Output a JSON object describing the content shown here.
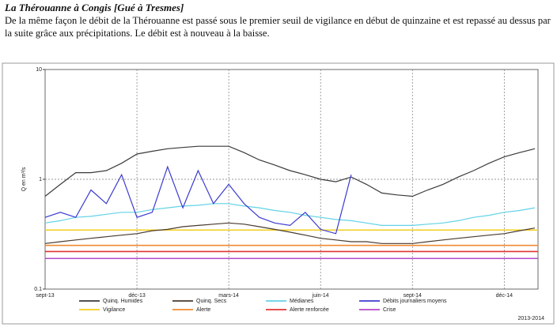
{
  "chart_data": {
    "type": "line",
    "title": "La Thérouanne à Congis [Gué à Tresmes]",
    "subtitle": "De la même façon le débit de la Thérouanne est passé sous le premier seuil de vigilance en début de quinzaine et est repassé au dessus par la suite grâce aux précipitations. Le débit est à nouveau à la baisse.",
    "ylabel": "Q en m³/s",
    "period": "2013-2014",
    "log_scale": true,
    "grid": true,
    "ylim": [
      0.1,
      10
    ],
    "yticks": [
      0.1,
      1,
      10
    ],
    "categories": [
      "sept-13",
      null,
      null,
      null,
      null,
      null,
      "déc-13",
      null,
      null,
      null,
      null,
      null,
      "mars-14",
      null,
      null,
      null,
      null,
      null,
      "juin-14",
      null,
      null,
      null,
      null,
      null,
      "sept-14",
      null,
      null,
      null,
      null,
      null,
      "déc-14",
      null,
      null
    ],
    "series": [
      {
        "name": "Quinq. Humides",
        "color": "#3a3a3a",
        "values": [
          0.7,
          0.9,
          1.15,
          1.15,
          1.2,
          1.4,
          1.7,
          1.8,
          1.9,
          1.95,
          2.0,
          2.0,
          2.0,
          1.75,
          1.5,
          1.35,
          1.2,
          1.1,
          1.0,
          0.95,
          1.05,
          0.9,
          0.75,
          0.72,
          0.7,
          0.8,
          0.9,
          1.05,
          1.2,
          1.4,
          1.6,
          1.75,
          1.9
        ]
      },
      {
        "name": "Quinq. Secs",
        "color": "#4a3a2e",
        "values": [
          0.26,
          0.27,
          0.28,
          0.29,
          0.3,
          0.31,
          0.32,
          0.34,
          0.35,
          0.37,
          0.38,
          0.39,
          0.4,
          0.39,
          0.37,
          0.35,
          0.33,
          0.31,
          0.29,
          0.28,
          0.27,
          0.27,
          0.26,
          0.26,
          0.26,
          0.27,
          0.28,
          0.29,
          0.3,
          0.31,
          0.32,
          0.34,
          0.36
        ]
      },
      {
        "name": "Médianes",
        "color": "#62d2e6",
        "values": [
          0.4,
          0.42,
          0.45,
          0.46,
          0.48,
          0.5,
          0.5,
          0.53,
          0.55,
          0.57,
          0.58,
          0.6,
          0.6,
          0.57,
          0.55,
          0.52,
          0.5,
          0.47,
          0.45,
          0.43,
          0.42,
          0.4,
          0.38,
          0.38,
          0.38,
          0.39,
          0.4,
          0.42,
          0.45,
          0.47,
          0.5,
          0.52,
          0.55
        ]
      },
      {
        "name": "Débits journaliers moyens",
        "color": "#3b3bd0",
        "values": [
          0.45,
          0.5,
          0.45,
          0.8,
          0.6,
          1.1,
          0.45,
          0.5,
          1.3,
          0.55,
          1.2,
          0.6,
          0.9,
          0.6,
          0.45,
          0.4,
          0.38,
          0.5,
          0.35,
          0.32,
          1.1,
          null,
          null,
          null,
          null,
          null,
          null,
          null,
          null,
          null,
          null,
          null,
          null
        ]
      }
    ],
    "thresholds": [
      {
        "name": "Vigilance",
        "color": "#f2cf1e",
        "value": 0.345
      },
      {
        "name": "Alerte",
        "color": "#f08a30",
        "value": 0.25
      },
      {
        "name": "Alerte renforcée",
        "color": "#e03535",
        "value": 0.22
      },
      {
        "name": "Crise",
        "color": "#b448c8",
        "value": 0.19
      }
    ]
  }
}
